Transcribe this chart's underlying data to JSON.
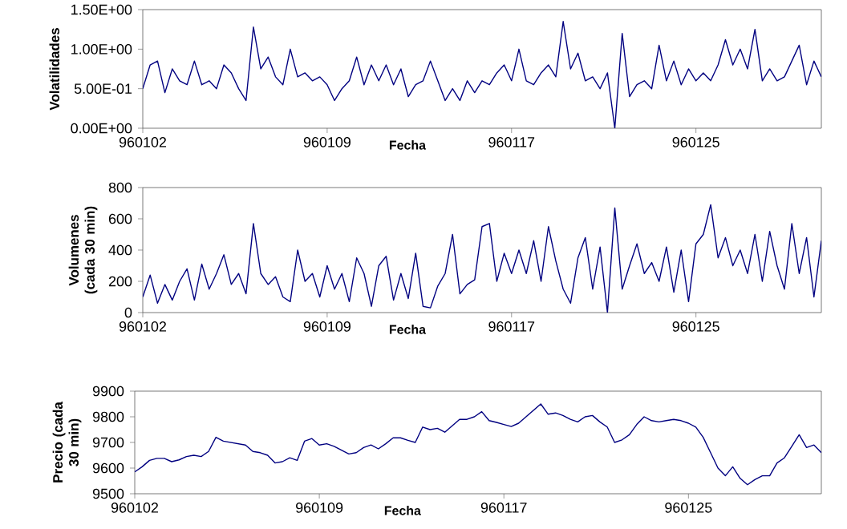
{
  "chart_data": [
    {
      "type": "line",
      "xlabel": "Fecha",
      "ylabel": "Volatilidades",
      "color": "#000080",
      "categories": [
        "960102",
        null,
        null,
        null,
        null,
        null,
        null,
        null,
        null,
        null,
        null,
        null,
        null,
        null,
        null,
        null,
        null,
        null,
        null,
        null,
        null,
        null,
        null,
        null,
        null,
        "960109",
        null,
        null,
        null,
        null,
        null,
        null,
        null,
        null,
        null,
        null,
        null,
        null,
        null,
        null,
        null,
        null,
        null,
        null,
        null,
        null,
        null,
        null,
        null,
        null,
        "960117",
        null,
        null,
        null,
        null,
        null,
        null,
        null,
        null,
        null,
        null,
        null,
        null,
        null,
        null,
        null,
        null,
        null,
        null,
        null,
        null,
        null,
        null,
        null,
        null,
        "960125",
        null,
        null,
        null,
        null,
        null,
        null,
        null,
        null,
        null,
        null,
        null,
        null,
        null,
        null,
        null,
        null,
        null
      ],
      "ylim": [
        0,
        1.5
      ],
      "yticks": [
        {
          "value": 0,
          "label": "0.00E+00"
        },
        {
          "value": 0.5,
          "label": "5.00E-01"
        },
        {
          "value": 1.0,
          "label": "1.00E+00"
        },
        {
          "value": 1.5,
          "label": "1.50E+00"
        }
      ],
      "values": [
        0.5,
        0.8,
        0.85,
        0.45,
        0.75,
        0.6,
        0.55,
        0.85,
        0.55,
        0.6,
        0.5,
        0.8,
        0.7,
        0.5,
        0.35,
        1.28,
        0.75,
        0.9,
        0.65,
        0.55,
        1.0,
        0.65,
        0.7,
        0.6,
        0.65,
        0.55,
        0.35,
        0.5,
        0.6,
        0.9,
        0.55,
        0.8,
        0.6,
        0.8,
        0.55,
        0.75,
        0.4,
        0.55,
        0.6,
        0.85,
        0.6,
        0.35,
        0.5,
        0.35,
        0.6,
        0.45,
        0.6,
        0.55,
        0.7,
        0.8,
        0.6,
        1.0,
        0.6,
        0.55,
        0.7,
        0.8,
        0.65,
        1.35,
        0.75,
        0.95,
        0.6,
        0.65,
        0.5,
        0.7,
        0.0,
        1.2,
        0.4,
        0.55,
        0.6,
        0.5,
        1.05,
        0.6,
        0.85,
        0.55,
        0.75,
        0.6,
        0.7,
        0.6,
        0.8,
        1.12,
        0.8,
        1.0,
        0.75,
        1.25,
        0.6,
        0.75,
        0.6,
        0.65,
        0.85,
        1.05,
        0.55,
        0.85,
        0.65
      ]
    },
    {
      "type": "line",
      "xlabel": "Fecha",
      "ylabel": "Volumenes (cada 30 min)",
      "color": "#000080",
      "categories": [
        "960102",
        null,
        null,
        null,
        null,
        null,
        null,
        null,
        null,
        null,
        null,
        null,
        null,
        null,
        null,
        null,
        null,
        null,
        null,
        null,
        null,
        null,
        null,
        null,
        null,
        "960109",
        null,
        null,
        null,
        null,
        null,
        null,
        null,
        null,
        null,
        null,
        null,
        null,
        null,
        null,
        null,
        null,
        null,
        null,
        null,
        null,
        null,
        null,
        null,
        null,
        "960117",
        null,
        null,
        null,
        null,
        null,
        null,
        null,
        null,
        null,
        null,
        null,
        null,
        null,
        null,
        null,
        null,
        null,
        null,
        null,
        null,
        null,
        null,
        null,
        null,
        "960125",
        null,
        null,
        null,
        null,
        null,
        null,
        null,
        null,
        null,
        null,
        null,
        null,
        null,
        null,
        null,
        null,
        null
      ],
      "ylim": [
        0,
        800
      ],
      "yticks": [
        0,
        200,
        400,
        600,
        800
      ],
      "values": [
        100,
        240,
        60,
        180,
        80,
        200,
        280,
        80,
        310,
        150,
        250,
        370,
        180,
        250,
        120,
        570,
        250,
        180,
        230,
        100,
        70,
        400,
        200,
        250,
        100,
        300,
        150,
        250,
        70,
        350,
        250,
        40,
        300,
        360,
        80,
        250,
        90,
        380,
        40,
        30,
        170,
        250,
        500,
        120,
        180,
        210,
        550,
        570,
        200,
        380,
        250,
        400,
        250,
        460,
        200,
        550,
        330,
        150,
        60,
        350,
        480,
        150,
        420,
        0,
        670,
        150,
        300,
        440,
        250,
        320,
        200,
        420,
        130,
        400,
        70,
        440,
        500,
        690,
        350,
        480,
        300,
        400,
        250,
        500,
        200,
        520,
        300,
        150,
        570,
        250,
        480,
        100,
        460
      ]
    },
    {
      "type": "line",
      "xlabel": "Fecha",
      "ylabel": "Precio (cada 30 min)",
      "color": "#000080",
      "categories": [
        "960102",
        null,
        null,
        null,
        null,
        null,
        null,
        null,
        null,
        null,
        null,
        null,
        null,
        null,
        null,
        null,
        null,
        null,
        null,
        null,
        null,
        null,
        null,
        null,
        null,
        "960109",
        null,
        null,
        null,
        null,
        null,
        null,
        null,
        null,
        null,
        null,
        null,
        null,
        null,
        null,
        null,
        null,
        null,
        null,
        null,
        null,
        null,
        null,
        null,
        null,
        "960117",
        null,
        null,
        null,
        null,
        null,
        null,
        null,
        null,
        null,
        null,
        null,
        null,
        null,
        null,
        null,
        null,
        null,
        null,
        null,
        null,
        null,
        null,
        null,
        null,
        "960125",
        null,
        null,
        null,
        null,
        null,
        null,
        null,
        null,
        null,
        null,
        null,
        null,
        null,
        null,
        null,
        null,
        null,
        null
      ],
      "ylim": [
        9500,
        9900
      ],
      "yticks": [
        9500,
        9600,
        9700,
        9800,
        9900
      ],
      "values": [
        9585,
        9605,
        9630,
        9638,
        9638,
        9625,
        9632,
        9645,
        9650,
        9645,
        9665,
        9720,
        9705,
        9700,
        9695,
        9690,
        9665,
        9660,
        9650,
        9620,
        9625,
        9640,
        9630,
        9705,
        9715,
        9690,
        9695,
        9685,
        9670,
        9655,
        9660,
        9680,
        9690,
        9675,
        9695,
        9718,
        9718,
        9708,
        9700,
        9760,
        9750,
        9755,
        9740,
        9765,
        9790,
        9790,
        9800,
        9820,
        9785,
        9778,
        9770,
        9762,
        9775,
        9800,
        9825,
        9850,
        9810,
        9815,
        9805,
        9790,
        9780,
        9800,
        9805,
        9780,
        9760,
        9700,
        9710,
        9730,
        9770,
        9800,
        9785,
        9780,
        9785,
        9790,
        9785,
        9775,
        9760,
        9720,
        9660,
        9600,
        9570,
        9605,
        9560,
        9535,
        9555,
        9570,
        9570,
        9620,
        9640,
        9685,
        9730,
        9680,
        9690,
        9660
      ]
    }
  ]
}
